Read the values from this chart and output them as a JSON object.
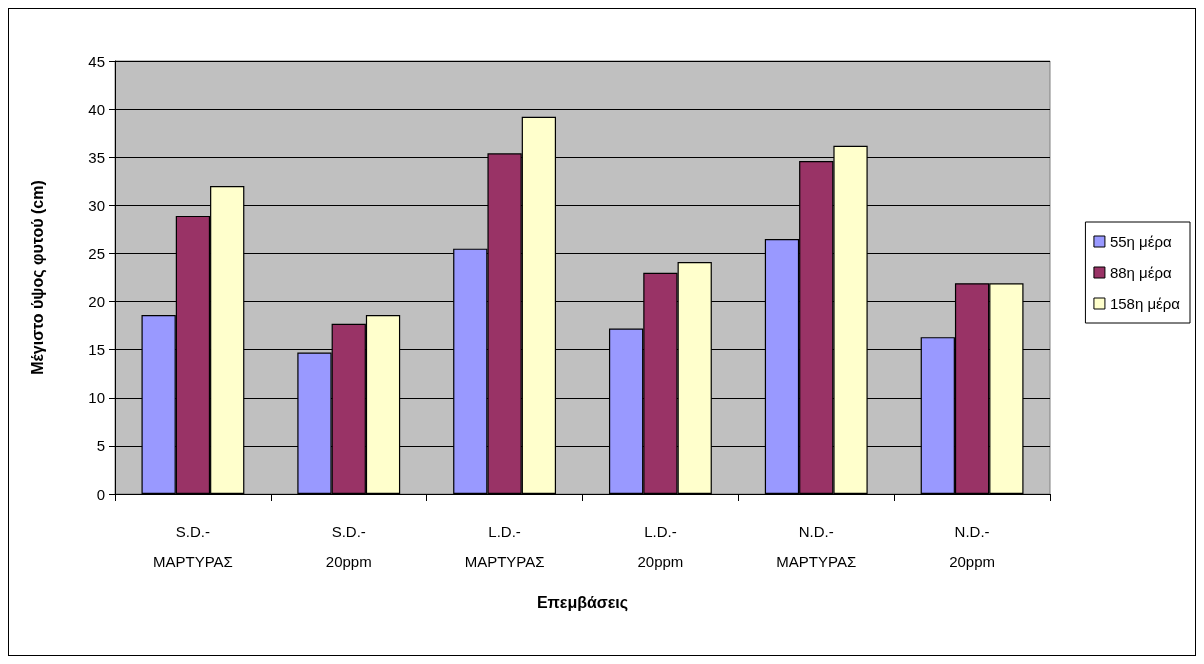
{
  "chart_data": {
    "type": "bar",
    "xlabel": "Επεμβάσεις",
    "ylabel": "Μέγιστο ύψος φυτού (cm)",
    "categories": [
      "S.D.-\nΜΑΡΤΥΡΑΣ",
      "S.D.-\n20ppm",
      "L.D.-\nΜΑΡΤΥΡΑΣ",
      "L.D.-\n20ppm",
      "N.D.-\nΜΑΡΤΥΡΑΣ",
      "N.D.-\n20ppm"
    ],
    "series": [
      {
        "name": "55η μέρα",
        "color": "#9999ff",
        "values": [
          18.6,
          14.7,
          25.5,
          17.2,
          26.5,
          16.3
        ]
      },
      {
        "name": "88η μέρα",
        "color": "#993366",
        "values": [
          28.9,
          17.7,
          35.4,
          23.0,
          34.6,
          21.9
        ]
      },
      {
        "name": "158η μέρα",
        "color": "#ffffcc",
        "values": [
          32.0,
          18.6,
          39.2,
          24.1,
          36.2,
          21.9
        ]
      }
    ],
    "ylim": [
      0,
      45
    ],
    "yticks": [
      0,
      5,
      10,
      15,
      20,
      25,
      30,
      35,
      40,
      45
    ],
    "grid": "y",
    "legend": "right"
  }
}
